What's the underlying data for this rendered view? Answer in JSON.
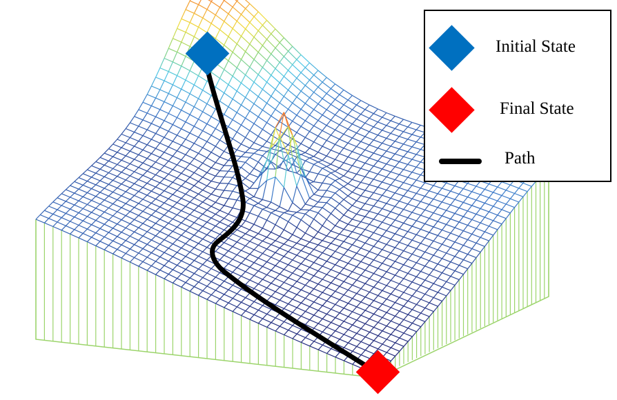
{
  "legend": {
    "items": [
      {
        "label": "Initial State",
        "color": "#0070c0",
        "icon": "blue-diamond"
      },
      {
        "label": "Final State",
        "color": "#ff0000",
        "icon": "red-diamond"
      },
      {
        "label": "Path",
        "color": "#000000",
        "icon": "black-line"
      }
    ]
  },
  "colors": {
    "path": "#000000",
    "initial": "#0070c0",
    "final": "#ff0000",
    "curtain": "#9bd46a"
  }
}
